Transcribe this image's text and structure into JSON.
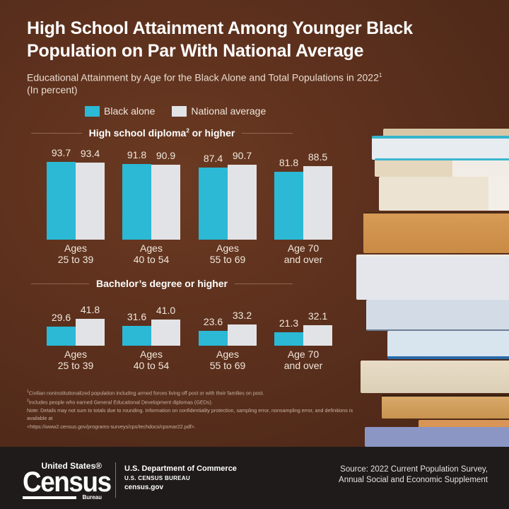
{
  "title_line1": "High School Attainment Among Younger Black",
  "title_line2": "Population on Par With National Average",
  "subtitle_line1": "Educational Attainment by Age for the Black Alone and Total Populations in 2022",
  "subtitle_sup": "1",
  "subtitle_line2": "(In percent)",
  "legend": [
    {
      "label": "Black alone",
      "color": "#2bb9d5"
    },
    {
      "label": "National average",
      "color": "#e2e3e6"
    }
  ],
  "sections": [
    {
      "title": "High school diploma",
      "sup": "2",
      "title_suffix": " or higher"
    },
    {
      "title": "Bachelor’s degree or higher",
      "sup": "",
      "title_suffix": ""
    }
  ],
  "age_groups": [
    {
      "line1": "Ages",
      "line2": "25 to 39"
    },
    {
      "line1": "Ages",
      "line2": "40 to 54"
    },
    {
      "line1": "Ages",
      "line2": "55 to 69"
    },
    {
      "line1": "Age 70",
      "line2": "and over"
    }
  ],
  "chart_data": [
    {
      "type": "bar",
      "title": "High school diploma or higher",
      "categories": [
        "Ages 25 to 39",
        "Ages 40 to 54",
        "Ages 55 to 69",
        "Age 70 and over"
      ],
      "series": [
        {
          "name": "Black alone",
          "color": "#2bb9d5",
          "values": [
            93.7,
            91.8,
            87.4,
            81.8
          ]
        },
        {
          "name": "National average",
          "color": "#e2e3e6",
          "values": [
            93.4,
            90.9,
            90.7,
            88.5
          ]
        }
      ],
      "value_labels": {
        "black": [
          "93.7",
          "91.8",
          "87.4",
          "81.8"
        ],
        "national": [
          "93.4",
          "90.9",
          "90.7",
          "88.5"
        ]
      },
      "xlabel": "",
      "ylabel": "Percent",
      "ylim": [
        0,
        100
      ],
      "grid": false,
      "legend_position": "top"
    },
    {
      "type": "bar",
      "title": "Bachelor's degree or higher",
      "categories": [
        "Ages 25 to 39",
        "Ages 40 to 54",
        "Ages 55 to 69",
        "Age 70 and over"
      ],
      "series": [
        {
          "name": "Black alone",
          "color": "#2bb9d5",
          "values": [
            29.6,
            31.6,
            23.6,
            21.3
          ]
        },
        {
          "name": "National average",
          "color": "#e2e3e6",
          "values": [
            41.8,
            41.0,
            33.2,
            32.1
          ]
        }
      ],
      "value_labels": {
        "black": [
          "29.6",
          "31.6",
          "23.6",
          "21.3"
        ],
        "national": [
          "41.8",
          "41.0",
          "33.2",
          "32.1"
        ]
      },
      "xlabel": "",
      "ylabel": "Percent",
      "ylim": [
        0,
        100
      ],
      "grid": false,
      "legend_position": "top"
    }
  ],
  "footnotes": {
    "n1_sup": "1",
    "n1": "Civilian noninstitutionalized population including armed forces living off post or with their families on post.",
    "n2_sup": "2",
    "n2": "Includes people who earned General Educational Development diplomas (GEDs).",
    "note": "Note: Details may not sum to totals due to rounding. Information on confidentiality protection, sampling error, nonsampling error, and definitions is available at",
    "link": "<https://www2.census.gov/programs-surveys/cps/techdocs/cpsmar22.pdf>."
  },
  "footer": {
    "logo_top": "United States®",
    "logo_main": "Census",
    "logo_bottom": "Bureau",
    "dept_line1": "U.S. Department of Commerce",
    "dept_line2": "U.S. CENSUS BUREAU",
    "dept_line3": "census.gov",
    "source_line1": "Source: 2022 Current Population Survey,",
    "source_line2": "Annual Social and Economic Supplement"
  }
}
